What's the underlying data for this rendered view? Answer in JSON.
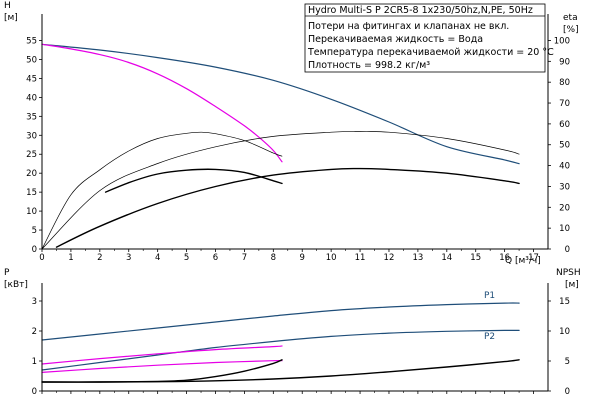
{
  "chart_data": [
    {
      "type": "line",
      "title": "Hydro Multi-S P 2CR5-8 1x230/50hz,N,PE, 50Hz",
      "info_lines": [
        "Потери на фитингах и клапанах не вкл.",
        "Перекачиваемая жидкость = Вода",
        "Температура перекачиваемой жидкости = 20 °C",
        "Плотность = 998.2 кг/м³"
      ],
      "xlabel": "Q [м³/ч]",
      "ylabel_left": "H",
      "ylabel_left_unit": "[м]",
      "ylabel_right": "eta",
      "ylabel_right_unit": "[%]",
      "xlim": [
        0,
        17.5
      ],
      "ylim_left": [
        0,
        62
      ],
      "ylim_right": [
        0,
        112.7
      ],
      "xticks": [
        0,
        1,
        2,
        3,
        4,
        5,
        6,
        7,
        8,
        9,
        10,
        11,
        12,
        13,
        14,
        15,
        16,
        17
      ],
      "yticks_left": [
        0,
        5,
        10,
        15,
        20,
        25,
        30,
        35,
        40,
        45,
        50,
        55
      ],
      "yticks_right": [
        0,
        10,
        20,
        30,
        40,
        50,
        60,
        70,
        80,
        90,
        100
      ],
      "grid": false,
      "series": [
        {
          "axis": "left",
          "color": "#1f4e79",
          "width": 1.2,
          "x": [
            0,
            2,
            4,
            6,
            8,
            10,
            12,
            14,
            16,
            16.5
          ],
          "y": [
            54,
            52.5,
            50.5,
            48,
            44.5,
            39.5,
            33.5,
            27,
            23.5,
            22.5
          ]
        },
        {
          "axis": "left",
          "color": "#e600e6",
          "width": 1.2,
          "x": [
            0,
            1,
            2,
            3,
            4,
            5,
            6,
            7,
            7.5,
            8,
            8.3
          ],
          "y": [
            54,
            52.8,
            51.3,
            49.2,
            46.2,
            42.3,
            37.6,
            32.5,
            29.5,
            26.0,
            23.0
          ]
        },
        {
          "axis": "left",
          "color": "#000000",
          "width": 1.4,
          "x": [
            0.5,
            2,
            4,
            6,
            8,
            10,
            11,
            12,
            14,
            16,
            16.5
          ],
          "y": [
            0.5,
            6,
            12,
            16.5,
            19.5,
            21,
            21.2,
            21,
            20,
            18,
            17.3
          ]
        },
        {
          "axis": "left",
          "color": "#000000",
          "width": 1.4,
          "x": [
            2.2,
            3,
            4,
            5,
            6,
            7,
            8,
            8.3
          ],
          "y": [
            15,
            17.5,
            19.8,
            20.8,
            21,
            20.2,
            18,
            17.3
          ]
        },
        {
          "axis": "right",
          "color": "#000000",
          "width": 0.7,
          "x": [
            0,
            1,
            2,
            3,
            4,
            5,
            5.5,
            6,
            7,
            8,
            8.3
          ],
          "y": [
            0,
            26,
            38,
            47,
            53,
            55.5,
            56,
            55.3,
            52,
            46,
            44.5
          ]
        },
        {
          "axis": "right",
          "color": "#000000",
          "width": 0.7,
          "x": [
            0,
            2,
            4,
            6,
            8,
            10,
            11,
            12,
            14,
            16,
            16.5
          ],
          "y": [
            0,
            28,
            41,
            49,
            54,
            56,
            56.3,
            56,
            53,
            47.5,
            45.5
          ]
        }
      ]
    },
    {
      "type": "line",
      "ylabel_left": "P",
      "ylabel_left_unit": "[кВт]",
      "ylabel_right": "NPSH",
      "ylabel_right_unit": "[м]",
      "xlim": [
        0,
        17.5
      ],
      "ylim_left": [
        0,
        3.6
      ],
      "ylim_right": [
        0,
        18
      ],
      "yticks_left": [
        0,
        1,
        2,
        3
      ],
      "yticks_right": [
        0,
        5,
        10,
        15
      ],
      "series": [
        {
          "name": "P1",
          "axis": "left",
          "color": "#1f4e79",
          "width": 1.2,
          "x": [
            0,
            2,
            4,
            6,
            8,
            10,
            12,
            14,
            16,
            16.5
          ],
          "y": [
            1.7,
            1.9,
            2.1,
            2.3,
            2.5,
            2.68,
            2.8,
            2.88,
            2.93,
            2.93
          ]
        },
        {
          "name": "P2",
          "axis": "left",
          "color": "#1f4e79",
          "width": 1.2,
          "x": [
            0,
            2,
            4,
            6,
            8,
            10,
            12,
            14,
            16,
            16.5
          ],
          "y": [
            0.7,
            0.95,
            1.2,
            1.45,
            1.65,
            1.82,
            1.93,
            1.99,
            2.02,
            2.02
          ]
        },
        {
          "axis": "left",
          "color": "#e600e6",
          "width": 1.2,
          "x": [
            0,
            2,
            4,
            6,
            8,
            8.3
          ],
          "y": [
            0.9,
            1.08,
            1.24,
            1.38,
            1.48,
            1.5
          ]
        },
        {
          "axis": "left",
          "color": "#e600e6",
          "width": 1.2,
          "x": [
            0,
            2,
            4,
            6,
            8,
            8.3
          ],
          "y": [
            0.62,
            0.75,
            0.86,
            0.95,
            1.01,
            1.01
          ]
        },
        {
          "axis": "right",
          "color": "#000000",
          "width": 1.4,
          "x": [
            0,
            2,
            4,
            6,
            8,
            10,
            12,
            14,
            16,
            16.5
          ],
          "y": [
            1.5,
            1.5,
            1.55,
            1.7,
            2.0,
            2.5,
            3.2,
            4.0,
            4.9,
            5.2
          ]
        },
        {
          "axis": "right",
          "color": "#000000",
          "width": 1.4,
          "x": [
            0,
            2,
            4,
            5,
            6,
            7,
            8,
            8.3
          ],
          "y": [
            1.5,
            1.5,
            1.6,
            1.8,
            2.4,
            3.3,
            4.6,
            5.2
          ]
        }
      ]
    }
  ]
}
